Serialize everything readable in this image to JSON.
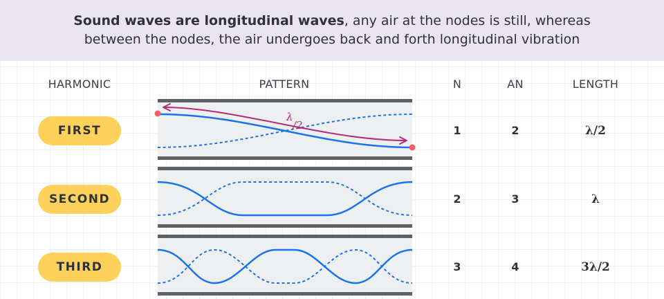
{
  "banner": {
    "bold": "Sound waves are longitudinal waves",
    "rest_line1": ", any air at the nodes is still, whereas",
    "line2": "between the nodes, the air undergoes back and forth longitudinal vibration"
  },
  "columns": {
    "harmonic": "HARMONIC",
    "pattern": "PATTERN",
    "n": "N",
    "an": "AN",
    "length": "LENGTH"
  },
  "rows": [
    {
      "harmonic": "FIRST",
      "n": "1",
      "an": "2",
      "length": "λ/2"
    },
    {
      "harmonic": "SECOND",
      "n": "2",
      "an": "3",
      "length": "λ"
    },
    {
      "harmonic": "THIRD",
      "n": "3",
      "an": "4",
      "length": "3λ/2"
    }
  ],
  "annotation": {
    "lambda": "λ",
    "denominator": "/2"
  },
  "colors": {
    "banner_bg": "#ebe4f3",
    "pill": "#fdd15a",
    "wave": "#1a73e8",
    "arrow": "#b52b78",
    "endpoint": "#f06262",
    "pipe_wall": "#5d6269",
    "pipe_fill": "#eeeff1"
  }
}
